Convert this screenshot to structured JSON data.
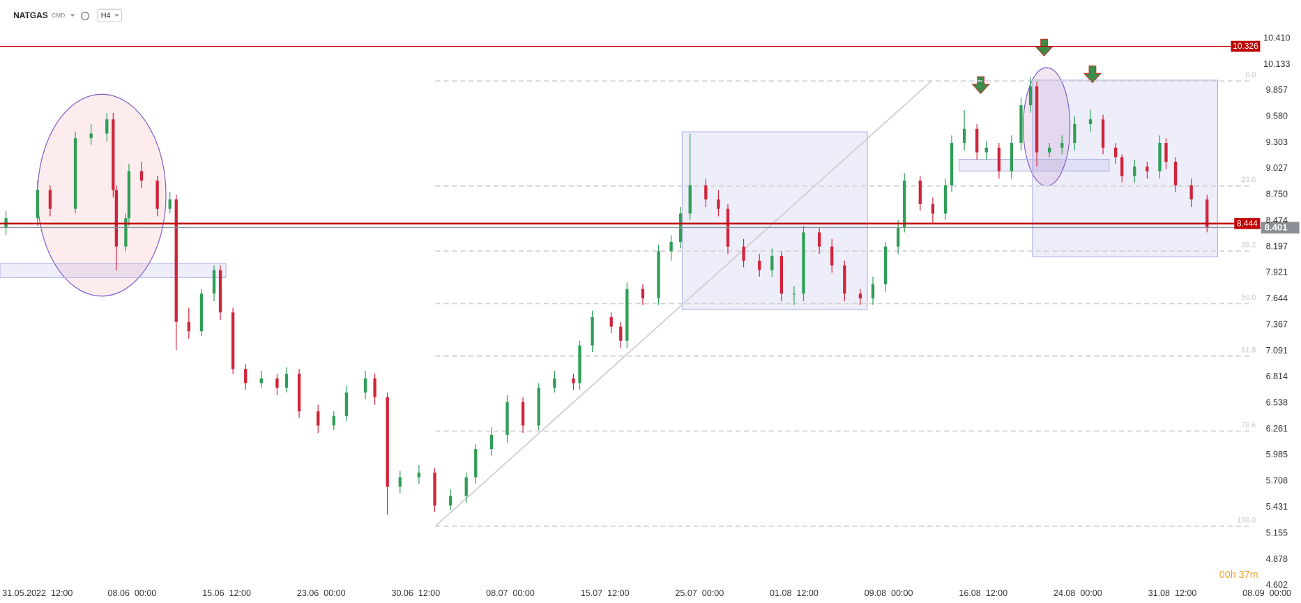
{
  "chart_data": {
    "type": "candlestick",
    "symbol": "NATGAS",
    "market": "CMD",
    "interval": "H4",
    "timer": "00h 37m",
    "up_color": "#2f9e57",
    "down_color": "#d0243a",
    "xlim": [
      -11.9,
      400.8
    ],
    "ylim": [
      4.416,
      10.817
    ],
    "xticks": [
      {
        "value": 0,
        "label": "31.05.2022  12:00"
      },
      {
        "value": 30,
        "label": "08.06  00:00"
      },
      {
        "value": 60,
        "label": "15.06  12:00"
      },
      {
        "value": 90,
        "label": "23.06  00:00"
      },
      {
        "value": 120,
        "label": "30.06  12:00"
      },
      {
        "value": 150,
        "label": "08.07  00:00"
      },
      {
        "value": 180,
        "label": "15.07  12:00"
      },
      {
        "value": 210,
        "label": "25.07  00:00"
      },
      {
        "value": 240,
        "label": "01.08  12:00"
      },
      {
        "value": 270,
        "label": "09.08  00:00"
      },
      {
        "value": 300,
        "label": "16.08  12:00"
      },
      {
        "value": 330,
        "label": "24.08  00:00"
      },
      {
        "value": 360,
        "label": "31.08  12:00"
      },
      {
        "value": 390,
        "label": "08.09  00:00"
      }
    ],
    "yticks": [
      {
        "value": 10.41,
        "label": "10.410"
      },
      10.133,
      9.857,
      {
        "value": 9.58,
        "label": "9.580"
      },
      9.303,
      9.027,
      {
        "value": 8.75,
        "label": "8.750"
      },
      8.474,
      8.197,
      7.921,
      7.644,
      7.367,
      7.091,
      6.814,
      6.538,
      6.261,
      5.985,
      5.708,
      5.431,
      5.155,
      4.878,
      4.602
    ],
    "x": [
      -10,
      0,
      4,
      12,
      17,
      22,
      24,
      25,
      28,
      29,
      33,
      38,
      42,
      44,
      48,
      52,
      56,
      58,
      62,
      66,
      71,
      76,
      79,
      83,
      89,
      94,
      98,
      104,
      107,
      111,
      115,
      121,
      126,
      131,
      136,
      139,
      144,
      149,
      154,
      159,
      164,
      170,
      172,
      176,
      182,
      185,
      187,
      192,
      197,
      201,
      204,
      207,
      212,
      216,
      219,
      224,
      229,
      233,
      236,
      240,
      243,
      248,
      252,
      256,
      261,
      265,
      269,
      273,
      275,
      280,
      284,
      288,
      290,
      294,
      298,
      301,
      305,
      309,
      312,
      315,
      317,
      321,
      325,
      329,
      334,
      338,
      342,
      344,
      348,
      352,
      356,
      358,
      361,
      366,
      371
    ],
    "open": [
      8.4,
      8.5,
      8.8,
      8.6,
      9.35,
      9.4,
      9.55,
      8.8,
      8.2,
      8.5,
      9.0,
      8.9,
      8.6,
      8.7,
      7.4,
      7.3,
      7.7,
      7.95,
      7.5,
      6.9,
      6.75,
      6.8,
      6.7,
      6.85,
      6.45,
      6.3,
      6.4,
      6.65,
      6.8,
      6.6,
      5.65,
      5.75,
      5.8,
      5.45,
      5.55,
      5.75,
      6.05,
      6.2,
      6.55,
      6.3,
      6.7,
      6.8,
      6.75,
      7.15,
      7.45,
      7.35,
      7.2,
      7.75,
      7.65,
      8.15,
      8.25,
      8.55,
      8.85,
      8.7,
      8.6,
      8.2,
      8.05,
      7.95,
      8.1,
      7.7,
      7.7,
      8.35,
      8.2,
      8.0,
      7.7,
      7.65,
      7.8,
      8.2,
      8.4,
      8.9,
      8.65,
      8.55,
      8.85,
      9.3,
      9.45,
      9.2,
      9.25,
      9.0,
      9.3,
      9.7,
      9.9,
      9.2,
      9.25,
      9.3,
      9.5,
      9.55,
      9.25,
      9.15,
      8.95,
      9.05,
      9.0,
      9.3,
      9.1,
      8.85,
      8.7
    ],
    "high": [
      8.58,
      8.9,
      8.85,
      9.42,
      9.5,
      9.62,
      9.62,
      8.85,
      8.55,
      9.08,
      9.1,
      8.95,
      8.78,
      8.75,
      7.55,
      7.75,
      8.0,
      8.0,
      7.55,
      6.95,
      6.88,
      6.85,
      6.92,
      6.9,
      6.52,
      6.45,
      6.72,
      6.88,
      6.85,
      6.65,
      5.82,
      5.88,
      5.85,
      5.62,
      5.8,
      6.1,
      6.28,
      6.62,
      6.6,
      6.75,
      6.88,
      6.85,
      7.2,
      7.52,
      7.5,
      7.4,
      7.82,
      7.8,
      8.22,
      8.32,
      8.62,
      9.4,
      8.92,
      8.8,
      8.65,
      8.28,
      8.12,
      8.18,
      8.15,
      7.78,
      8.42,
      8.4,
      8.28,
      8.05,
      7.75,
      7.88,
      8.25,
      8.48,
      8.98,
      8.95,
      8.72,
      8.92,
      9.38,
      9.65,
      9.5,
      9.32,
      9.3,
      9.38,
      9.78,
      10.0,
      9.95,
      9.3,
      9.38,
      9.58,
      9.65,
      9.6,
      9.3,
      9.18,
      9.12,
      9.1,
      9.38,
      9.35,
      9.15,
      8.92,
      8.75
    ],
    "low": [
      8.32,
      8.42,
      8.52,
      8.55,
      9.28,
      9.32,
      8.72,
      7.95,
      8.15,
      8.42,
      8.82,
      8.52,
      8.55,
      7.1,
      7.22,
      7.25,
      7.62,
      7.42,
      6.85,
      6.68,
      6.7,
      6.62,
      6.65,
      6.38,
      6.22,
      6.25,
      6.35,
      6.58,
      6.52,
      5.35,
      5.58,
      5.68,
      5.38,
      5.4,
      5.48,
      5.68,
      5.98,
      6.12,
      6.22,
      6.25,
      6.65,
      6.68,
      6.68,
      7.08,
      7.28,
      7.12,
      7.12,
      7.58,
      7.58,
      8.05,
      8.18,
      8.48,
      8.62,
      8.52,
      8.12,
      7.98,
      7.88,
      7.88,
      7.62,
      7.58,
      7.62,
      8.12,
      7.92,
      7.62,
      7.58,
      7.58,
      7.72,
      8.12,
      8.35,
      8.58,
      8.45,
      8.48,
      8.78,
      9.22,
      9.12,
      9.12,
      8.92,
      8.92,
      9.22,
      9.62,
      9.05,
      9.15,
      9.18,
      9.22,
      9.42,
      9.18,
      9.08,
      8.88,
      8.88,
      8.92,
      8.92,
      9.02,
      8.78,
      8.62,
      8.35
    ],
    "close": [
      8.5,
      8.8,
      8.6,
      9.35,
      9.4,
      9.55,
      8.8,
      8.2,
      8.5,
      9.0,
      8.9,
      8.6,
      8.7,
      7.4,
      7.3,
      7.7,
      7.95,
      7.5,
      6.9,
      6.75,
      6.8,
      6.7,
      6.85,
      6.45,
      6.3,
      6.4,
      6.65,
      6.8,
      6.6,
      5.65,
      5.75,
      5.8,
      5.45,
      5.55,
      5.75,
      6.05,
      6.2,
      6.55,
      6.3,
      6.7,
      6.8,
      6.75,
      7.15,
      7.45,
      7.35,
      7.2,
      7.75,
      7.65,
      8.15,
      8.25,
      8.55,
      8.85,
      8.7,
      8.6,
      8.2,
      8.05,
      7.95,
      8.1,
      7.7,
      7.7,
      8.35,
      8.2,
      8.0,
      7.7,
      7.65,
      7.8,
      8.2,
      8.4,
      8.9,
      8.65,
      8.55,
      8.85,
      9.3,
      9.45,
      9.2,
      9.25,
      9.0,
      9.3,
      9.7,
      9.9,
      9.2,
      9.25,
      9.3,
      9.5,
      9.55,
      9.25,
      9.15,
      8.95,
      9.05,
      9.0,
      9.3,
      9.1,
      8.85,
      8.7,
      8.4
    ],
    "resistance": 10.326,
    "support": 8.444,
    "last_price": 8.401,
    "line_color": "#c00000",
    "fib_levels": [
      {
        "label": "0.0",
        "price": 9.958
      },
      {
        "label": "23.6",
        "price": 8.843
      },
      {
        "label": "38.2",
        "price": 8.152
      },
      {
        "label": "50.0",
        "price": 7.594
      },
      {
        "label": "61.8",
        "price": 7.037
      },
      {
        "label": "78.6",
        "price": 6.24
      },
      {
        "label": "100.0",
        "price": 5.231
      }
    ]
  }
}
